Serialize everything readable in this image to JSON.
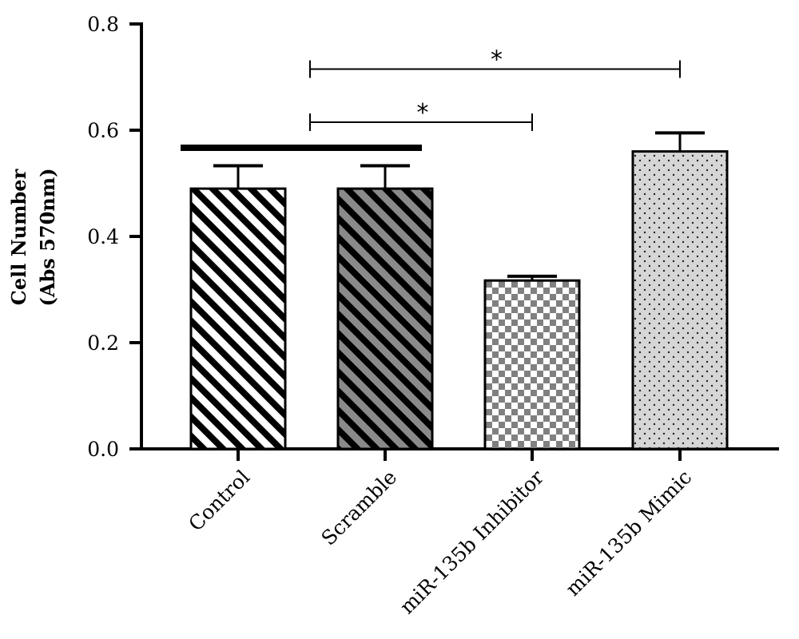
{
  "chart_data": {
    "type": "bar",
    "categories": [
      "Control",
      "Scramble",
      "miR-135b Inhibitor",
      "miR-135b Mimic"
    ],
    "values": [
      0.49,
      0.49,
      0.317,
      0.56
    ],
    "errors": [
      0.043,
      0.043,
      0.008,
      0.035
    ],
    "ylabel_line1": "Cell Number",
    "ylabel_line2": "(Abs 570nm)",
    "ylim": [
      0.0,
      0.8
    ],
    "yticks": [
      0.0,
      0.2,
      0.4,
      0.6,
      0.8
    ],
    "ytick_labels": [
      "0.0",
      "0.2",
      "0.4",
      "0.6",
      "0.8"
    ],
    "bar_patterns": [
      "white-black-diagonal-stripes",
      "gray-black-diagonal-stripes",
      "gray-checkerboard",
      "light-gray-dots"
    ],
    "grouping_bar": {
      "from": 0,
      "to": 1,
      "y": 0.567
    },
    "significance": [
      {
        "from": 1,
        "to": 2,
        "y": 0.615,
        "label": "*"
      },
      {
        "from": 1,
        "to": 3,
        "y": 0.715,
        "label": "*"
      }
    ],
    "grid": false,
    "legend": "none"
  }
}
